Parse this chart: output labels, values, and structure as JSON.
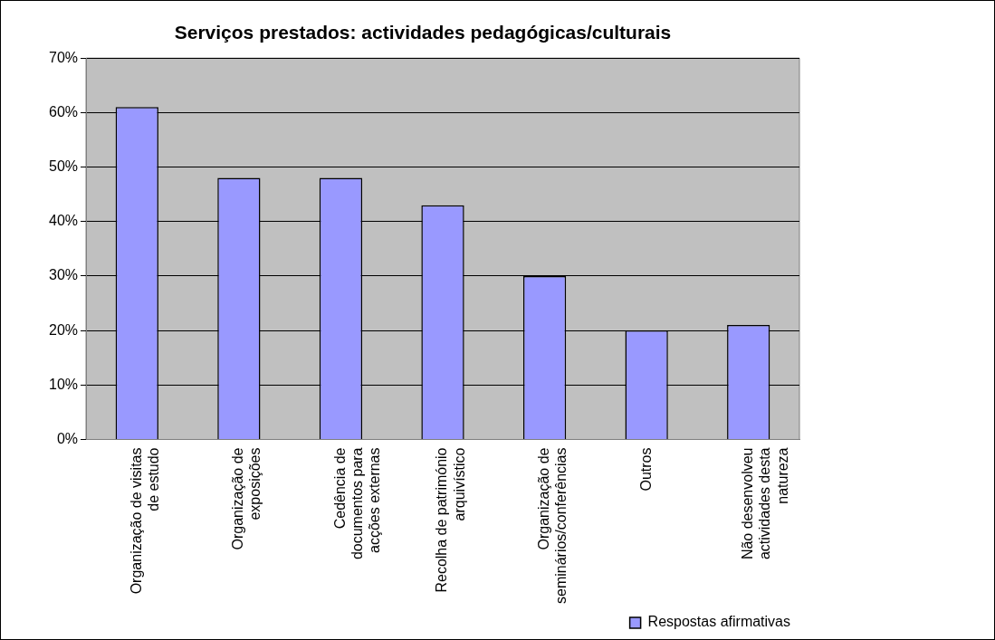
{
  "chart_data": {
    "type": "bar",
    "title": "Serviços prestados: actividades pedagógicas/culturais",
    "categories": [
      "Organização de visitas de estudo",
      "Organização de exposições",
      "Cedência de documentos para acções externas",
      "Recolha de património arquivístico",
      "Organização de seminários/conferências",
      "Outros",
      "Não desenvolveu actividades desta natureza"
    ],
    "series": [
      {
        "name": "Respostas afirmativas",
        "color": "#9999ff",
        "values": [
          61,
          48,
          48,
          43,
          30,
          20,
          21
        ]
      }
    ],
    "ylim": [
      0,
      70
    ],
    "yticks": [
      {
        "value": 0,
        "label": "0%"
      },
      {
        "value": 10,
        "label": "10%"
      },
      {
        "value": 20,
        "label": "20%"
      },
      {
        "value": 30,
        "label": "30%"
      },
      {
        "value": 40,
        "label": "40%"
      },
      {
        "value": 50,
        "label": "50%"
      },
      {
        "value": 60,
        "label": "60%"
      },
      {
        "value": 70,
        "label": "70%"
      }
    ],
    "grid": "y",
    "legend": "bottom right"
  }
}
